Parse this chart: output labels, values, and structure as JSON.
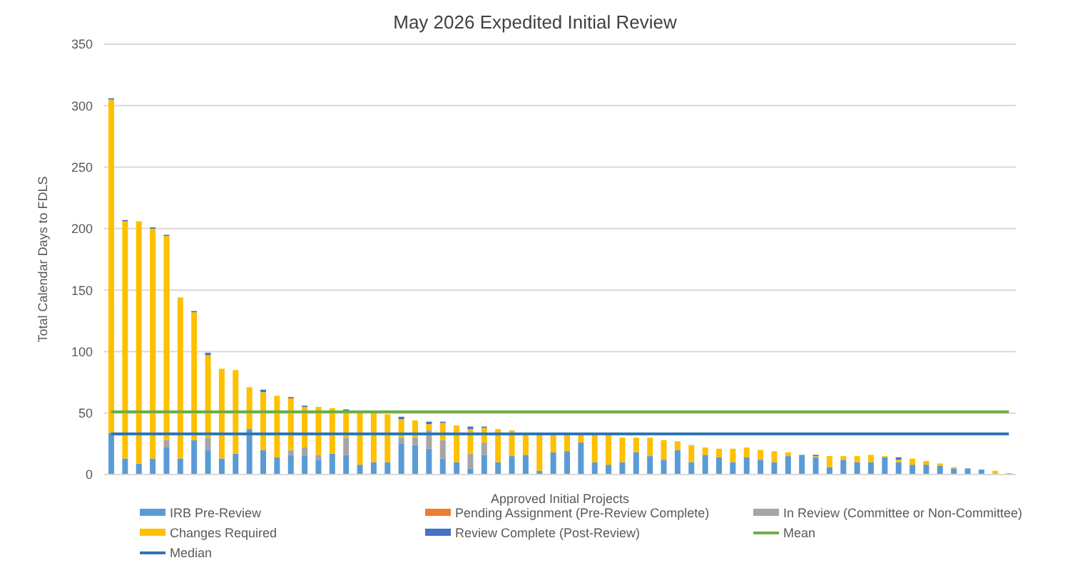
{
  "chart_data": {
    "type": "bar",
    "title": "May 2026 Expedited Initial Review",
    "xlabel": "Approved Initial Projects",
    "ylabel": "Total Calendar Days to FDLS",
    "stacked": true,
    "grid": "y",
    "legend": "bottom",
    "tick_labels": "y",
    "ylim": [
      0,
      350
    ],
    "yticks": [
      0,
      50,
      100,
      150,
      200,
      250,
      300,
      350
    ],
    "categories": [
      null,
      null,
      null,
      null,
      null,
      null,
      null,
      null,
      null,
      null,
      null,
      null,
      null,
      null,
      null,
      null,
      null,
      null,
      null,
      null,
      null,
      null,
      null,
      null,
      null,
      null,
      null,
      null,
      null,
      null,
      null,
      null,
      null,
      null,
      null,
      null,
      null,
      null,
      null,
      null,
      null,
      null,
      null,
      null,
      null,
      null,
      null,
      null,
      null,
      null,
      null,
      null,
      null,
      null,
      null,
      null,
      null,
      null,
      null,
      null,
      null,
      null,
      null,
      null,
      null,
      null
    ],
    "series": [
      {
        "name": "IRB Pre-Review",
        "color": "#5b9bd5",
        "values": [
          34,
          13,
          9,
          13,
          22,
          13,
          28,
          20,
          13,
          17,
          37,
          20,
          14,
          16,
          16,
          12,
          17,
          16,
          8,
          10,
          10,
          25,
          24,
          21,
          13,
          10,
          5,
          16,
          10,
          15,
          16,
          3,
          18,
          19,
          26,
          10,
          8,
          10,
          18,
          15,
          12,
          20,
          10,
          16,
          14,
          10,
          14,
          12,
          10,
          15,
          16,
          14,
          6,
          12,
          10,
          10,
          14,
          10,
          8,
          8,
          7,
          5,
          5,
          4,
          0,
          1
        ]
      },
      {
        "name": "Pending Assignment (Pre-Review Complete)",
        "color": "#ed7d31",
        "values": [
          0,
          0,
          0,
          0,
          0,
          0,
          0,
          0,
          0,
          0,
          0,
          0,
          0,
          0,
          0,
          0,
          0,
          0,
          0,
          0,
          0,
          0,
          0,
          0,
          0,
          0,
          0,
          0,
          0,
          0,
          0,
          0,
          0,
          0,
          0,
          0,
          0,
          0,
          0,
          0,
          0,
          0,
          0,
          0,
          0,
          0,
          0,
          0,
          0,
          0,
          0,
          0,
          0,
          0,
          0,
          0,
          0,
          0,
          0,
          0,
          0,
          0,
          0,
          0,
          0,
          0
        ]
      },
      {
        "name": "In Review (Committee or Non-Committee)",
        "color": "#a5a5a5",
        "values": [
          0,
          0,
          0,
          0,
          6,
          0,
          0,
          10,
          0,
          0,
          0,
          0,
          0,
          4,
          6,
          4,
          0,
          14,
          0,
          0,
          0,
          5,
          6,
          15,
          15,
          0,
          12,
          10,
          0,
          0,
          0,
          0,
          0,
          0,
          0,
          0,
          0,
          0,
          0,
          0,
          0,
          0,
          0,
          0,
          0,
          0,
          0,
          0,
          0,
          0,
          0,
          0,
          0,
          0,
          0,
          0,
          0,
          0,
          0,
          0,
          0,
          0,
          0,
          0,
          0,
          0
        ]
      },
      {
        "name": "Changes Required",
        "color": "#ffc000",
        "values": [
          271,
          193,
          197,
          187,
          166,
          131,
          104,
          67,
          73,
          68,
          34,
          47,
          50,
          42,
          33,
          39,
          37,
          22,
          43,
          40,
          39,
          15,
          14,
          5,
          14,
          30,
          20,
          12,
          27,
          21,
          18,
          29,
          14,
          13,
          6,
          22,
          24,
          20,
          12,
          15,
          16,
          7,
          14,
          6,
          7,
          11,
          8,
          8,
          9,
          3,
          0,
          1,
          9,
          3,
          5,
          6,
          1,
          2,
          5,
          3,
          2,
          1,
          0,
          0,
          3,
          0
        ]
      },
      {
        "name": "Review Complete (Post-Review)",
        "color": "#4472c4",
        "values": [
          1,
          1,
          0,
          1,
          1,
          0,
          1,
          2,
          0,
          0,
          0,
          2,
          0,
          1,
          1,
          0,
          0,
          1,
          0,
          0,
          0,
          2,
          0,
          2,
          1,
          0,
          2,
          1,
          0,
          0,
          0,
          0,
          0,
          0,
          0,
          0,
          0,
          0,
          0,
          0,
          0,
          0,
          0,
          0,
          0,
          0,
          0,
          0,
          0,
          0,
          0,
          1,
          0,
          0,
          0,
          0,
          0,
          2,
          0,
          0,
          0,
          0,
          0,
          0,
          0,
          0
        ]
      },
      {
        "name": "Mean",
        "type": "line",
        "color": "#70ad47",
        "values": [
          51,
          51,
          51,
          51,
          51,
          51,
          51,
          51,
          51,
          51,
          51,
          51,
          51,
          51,
          51,
          51,
          51,
          51,
          51,
          51,
          51,
          51,
          51,
          51,
          51,
          51,
          51,
          51,
          51,
          51,
          51,
          51,
          51,
          51,
          51,
          51,
          51,
          51,
          51,
          51,
          51,
          51,
          51,
          51,
          51,
          51,
          51,
          51,
          51,
          51,
          51,
          51,
          51,
          51,
          51,
          51,
          51,
          51,
          51,
          51,
          51,
          51,
          51,
          51,
          51,
          51
        ]
      },
      {
        "name": "Median",
        "type": "line",
        "color": "#2e75b6",
        "values": [
          33,
          33,
          33,
          33,
          33,
          33,
          33,
          33,
          33,
          33,
          33,
          33,
          33,
          33,
          33,
          33,
          33,
          33,
          33,
          33,
          33,
          33,
          33,
          33,
          33,
          33,
          33,
          33,
          33,
          33,
          33,
          33,
          33,
          33,
          33,
          33,
          33,
          33,
          33,
          33,
          33,
          33,
          33,
          33,
          33,
          33,
          33,
          33,
          33,
          33,
          33,
          33,
          33,
          33,
          33,
          33,
          33,
          33,
          33,
          33,
          33,
          33,
          33,
          33,
          33,
          33
        ]
      }
    ]
  }
}
